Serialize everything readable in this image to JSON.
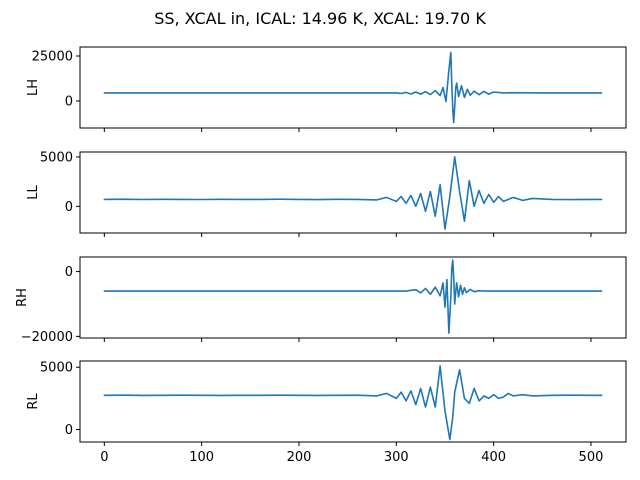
{
  "title": "SS, XCAL in, ICAL: 14.96 K, XCAL: 19.70 K",
  "line_color": "#1f77b4",
  "chart_data": [
    {
      "type": "line",
      "ylabel": "LH",
      "xlim": [
        -25,
        536
      ],
      "ylim": [
        -15000,
        30000
      ],
      "yticks": [
        0,
        25000
      ],
      "xticks": [
        0,
        100,
        200,
        300,
        400,
        500
      ],
      "show_xticklabels": false,
      "series": [
        {
          "x": [
            0,
            50,
            100,
            150,
            200,
            250,
            290,
            300,
            305,
            310,
            315,
            320,
            325,
            330,
            335,
            340,
            345,
            348,
            351,
            354,
            356,
            357,
            358,
            359,
            360,
            361,
            362,
            364,
            367,
            370,
            373,
            376,
            380,
            385,
            390,
            395,
            400,
            410,
            420,
            450,
            480,
            511
          ],
          "values": [
            4500,
            4500,
            4500,
            4500,
            4500,
            4500,
            4500,
            4500,
            4200,
            4800,
            3900,
            5000,
            3800,
            5200,
            3600,
            5800,
            3000,
            7500,
            -300,
            17000,
            27000,
            9000,
            -4500,
            -12000,
            -3000,
            7000,
            10000,
            2500,
            8500,
            2000,
            6500,
            3200,
            5500,
            3500,
            5300,
            3800,
            5000,
            4500,
            4600,
            4500,
            4500,
            4500
          ]
        }
      ]
    },
    {
      "type": "line",
      "ylabel": "LL",
      "xlim": [
        -25,
        536
      ],
      "ylim": [
        -2700,
        5500
      ],
      "yticks": [
        0,
        5000
      ],
      "xticks": [
        0,
        100,
        200,
        300,
        400,
        500
      ],
      "show_xticklabels": false,
      "series": [
        {
          "x": [
            0,
            20,
            40,
            60,
            80,
            100,
            120,
            140,
            160,
            180,
            200,
            220,
            240,
            260,
            280,
            290,
            300,
            305,
            310,
            315,
            320,
            325,
            330,
            335,
            340,
            345,
            350,
            355,
            360,
            365,
            370,
            375,
            380,
            385,
            390,
            395,
            400,
            405,
            410,
            420,
            430,
            440,
            460,
            480,
            500,
            511
          ],
          "values": [
            700,
            720,
            690,
            710,
            700,
            690,
            710,
            700,
            700,
            720,
            700,
            680,
            710,
            700,
            650,
            900,
            500,
            1000,
            300,
            1100,
            0,
            1300,
            -500,
            1500,
            -1000,
            2200,
            -2300,
            1000,
            5000,
            1500,
            -1500,
            2600,
            0,
            1600,
            300,
            1200,
            400,
            1000,
            500,
            900,
            600,
            800,
            700,
            680,
            700,
            700
          ]
        }
      ]
    },
    {
      "type": "line",
      "ylabel": "RH",
      "xlim": [
        -25,
        536
      ],
      "ylim": [
        -20500,
        4500
      ],
      "yticks": [
        -20000,
        0
      ],
      "xticks": [
        0,
        100,
        200,
        300,
        400,
        500
      ],
      "show_xticklabels": false,
      "series": [
        {
          "x": [
            0,
            50,
            100,
            150,
            200,
            250,
            300,
            310,
            320,
            325,
            330,
            335,
            340,
            345,
            348,
            350,
            352,
            354,
            356,
            357,
            358,
            359,
            360,
            361,
            362,
            364,
            366,
            368,
            370,
            372,
            376,
            380,
            385,
            390,
            400,
            420,
            450,
            480,
            511
          ],
          "values": [
            -6000,
            -6000,
            -6000,
            -6000,
            -6000,
            -6000,
            -6000,
            -6000,
            -5600,
            -6600,
            -5200,
            -7000,
            -4800,
            -7500,
            -3500,
            -11000,
            -2500,
            -19000,
            -8000,
            1000,
            3500,
            -2000,
            -10000,
            -6500,
            -3500,
            -7800,
            -4200,
            -7000,
            -5000,
            -6500,
            -5500,
            -6200,
            -5900,
            -6000,
            -6000,
            -6000,
            -6000,
            -6000,
            -6000
          ]
        }
      ]
    },
    {
      "type": "line",
      "ylabel": "RL",
      "xlim": [
        -25,
        536
      ],
      "ylim": [
        -1000,
        5500
      ],
      "yticks": [
        0,
        5000
      ],
      "xticks": [
        0,
        100,
        200,
        300,
        400,
        500
      ],
      "xticklabels": [
        "0",
        "100",
        "200",
        "300",
        "400",
        "500"
      ],
      "show_xticklabels": true,
      "series": [
        {
          "x": [
            0,
            20,
            40,
            60,
            80,
            100,
            120,
            140,
            160,
            180,
            200,
            220,
            240,
            260,
            280,
            290,
            300,
            305,
            310,
            315,
            320,
            325,
            330,
            335,
            340,
            345,
            350,
            355,
            358,
            360,
            365,
            370,
            375,
            380,
            385,
            390,
            395,
            400,
            405,
            410,
            415,
            420,
            430,
            440,
            460,
            480,
            500,
            511
          ],
          "values": [
            2750,
            2760,
            2740,
            2750,
            2760,
            2750,
            2740,
            2750,
            2750,
            2760,
            2750,
            2740,
            2750,
            2760,
            2700,
            2900,
            2500,
            3000,
            2300,
            3100,
            2000,
            3300,
            1800,
            3400,
            1800,
            5100,
            1500,
            -800,
            1000,
            3000,
            4800,
            2500,
            2100,
            3300,
            2300,
            2700,
            2500,
            2800,
            2500,
            2600,
            2900,
            2700,
            2800,
            2700,
            2750,
            2760,
            2750,
            2750
          ]
        }
      ]
    }
  ]
}
